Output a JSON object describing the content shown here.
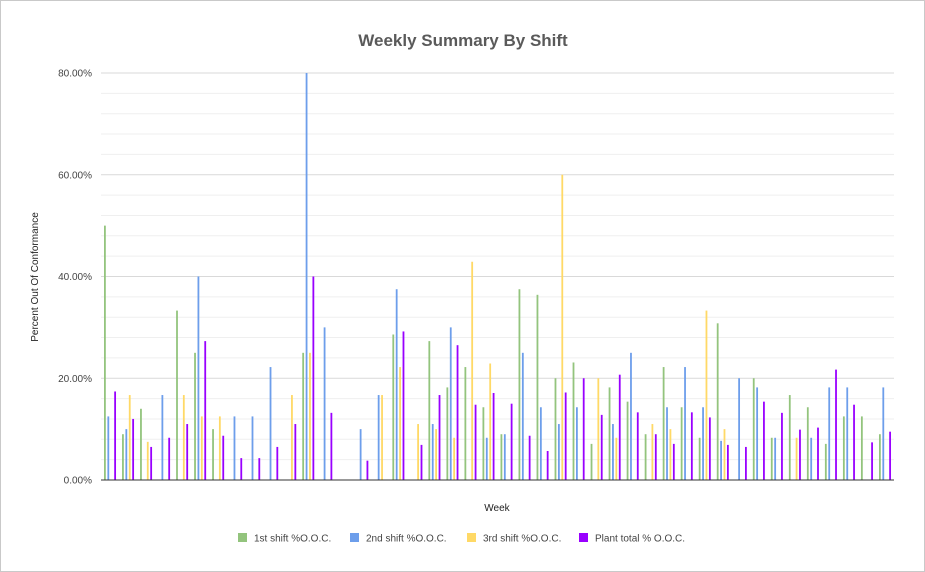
{
  "chart_data": {
    "type": "bar",
    "title": "Weekly Summary By Shift",
    "xlabel": "Week",
    "ylabel": "Percent Out Of Conformance",
    "ylim": [
      0,
      80
    ],
    "y_ticks": [
      "0.00%",
      "20.00%",
      "40.00%",
      "60.00%",
      "80.00%"
    ],
    "y_tick_values": [
      0,
      20,
      40,
      60,
      80
    ],
    "grid": true,
    "legend": "bottom",
    "series": [
      {
        "name": "1st shift %O.O.C.",
        "color": "#93c47d",
        "values": [
          50,
          9,
          14,
          0,
          33.3,
          25,
          10,
          0,
          0,
          0,
          0,
          25,
          0,
          0,
          0,
          0,
          28.6,
          0,
          27.3,
          18.2,
          22.2,
          14.3,
          9,
          37.5,
          36.4,
          20,
          23.1,
          7.1,
          18.2,
          15.4,
          9,
          22.2,
          14.3,
          8.3,
          30.8,
          0,
          20,
          8.3,
          16.7,
          14.3,
          7.1,
          12.5,
          12.5,
          9
        ]
      },
      {
        "name": "2nd shift %O.O.C.",
        "color": "#6d9eeb",
        "values": [
          12.5,
          10,
          0,
          16.7,
          0,
          40,
          0,
          12.5,
          12.5,
          22.2,
          0,
          80,
          30,
          0,
          10,
          16.7,
          37.5,
          0,
          11,
          30,
          0,
          8.3,
          9,
          25,
          14.3,
          11,
          14.3,
          0,
          11,
          25,
          0,
          14.3,
          22.2,
          14.3,
          7.7,
          20,
          18.2,
          8.3,
          0,
          8.3,
          18.2,
          18.2,
          0,
          18.2
        ]
      },
      {
        "name": "3rd shift %O.O.C.",
        "color": "#ffd966",
        "values": [
          0,
          16.7,
          7.5,
          0,
          16.7,
          12.5,
          12.5,
          0,
          0,
          0,
          16.7,
          25,
          0,
          0,
          0,
          16.7,
          22.2,
          11,
          10,
          8.3,
          42.9,
          22.9,
          0,
          0,
          0,
          60,
          0,
          20,
          8.3,
          0,
          11,
          10,
          0,
          33.3,
          10,
          0,
          0,
          0,
          8.3,
          0,
          0,
          0,
          0,
          0
        ]
      },
      {
        "name": "Plant total % O.O.C.",
        "color": "#9900ff",
        "values": [
          17.4,
          12,
          6.5,
          8.3,
          11,
          27.3,
          8.7,
          4.3,
          4.3,
          6.5,
          11,
          40,
          13.2,
          0,
          3.8,
          0,
          29.2,
          6.9,
          16.7,
          26.5,
          14.8,
          17.1,
          15,
          8.7,
          5.7,
          17.2,
          20,
          12.8,
          20.7,
          13.3,
          9,
          7.1,
          13.3,
          12.3,
          6.9,
          6.5,
          15.4,
          13.2,
          9.9,
          10.3,
          21.7,
          14.8,
          7.4,
          9.5
        ]
      }
    ]
  }
}
